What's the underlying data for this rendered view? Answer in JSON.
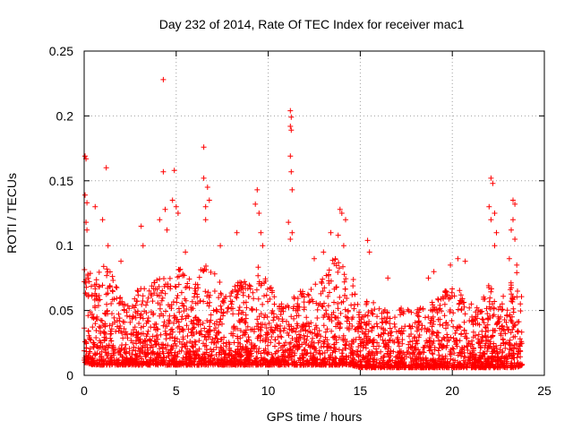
{
  "chart_data": {
    "type": "scatter",
    "title": "Day 232 of 2014, Rate Of TEC Index for receiver mac1",
    "xlabel": "GPS time / hours",
    "ylabel": "ROTI / TECUs",
    "xlim": [
      0,
      25
    ],
    "ylim": [
      0,
      0.25
    ],
    "xticks": [
      0,
      5,
      10,
      15,
      20,
      25
    ],
    "xtick_labels": [
      "0",
      "5",
      "10",
      "15",
      "20",
      "25"
    ],
    "yticks": [
      0,
      0.05,
      0.1,
      0.15,
      0.2,
      0.25
    ],
    "ytick_labels": [
      "0",
      "0.05",
      "0.1",
      "0.15",
      "0.2",
      "0.25"
    ],
    "grid": true,
    "marker": "+",
    "color": "#ff0000",
    "data_range_x": [
      0.0,
      23.8
    ],
    "outlier_points": [
      {
        "x": 0.05,
        "y": 0.169
      },
      {
        "x": 0.1,
        "y": 0.167
      },
      {
        "x": 0.05,
        "y": 0.139
      },
      {
        "x": 0.15,
        "y": 0.133
      },
      {
        "x": 0.1,
        "y": 0.118
      },
      {
        "x": 0.15,
        "y": 0.112
      },
      {
        "x": 0.6,
        "y": 0.13
      },
      {
        "x": 1.2,
        "y": 0.16
      },
      {
        "x": 1.0,
        "y": 0.12
      },
      {
        "x": 1.3,
        "y": 0.1
      },
      {
        "x": 2.0,
        "y": 0.088
      },
      {
        "x": 3.1,
        "y": 0.115
      },
      {
        "x": 3.2,
        "y": 0.1
      },
      {
        "x": 4.3,
        "y": 0.228
      },
      {
        "x": 4.3,
        "y": 0.157
      },
      {
        "x": 4.1,
        "y": 0.12
      },
      {
        "x": 4.4,
        "y": 0.128
      },
      {
        "x": 4.5,
        "y": 0.112
      },
      {
        "x": 4.9,
        "y": 0.158
      },
      {
        "x": 4.8,
        "y": 0.135
      },
      {
        "x": 5.0,
        "y": 0.13
      },
      {
        "x": 5.1,
        "y": 0.125
      },
      {
        "x": 5.5,
        "y": 0.095
      },
      {
        "x": 6.5,
        "y": 0.176
      },
      {
        "x": 6.5,
        "y": 0.152
      },
      {
        "x": 6.7,
        "y": 0.145
      },
      {
        "x": 6.6,
        "y": 0.13
      },
      {
        "x": 6.8,
        "y": 0.135
      },
      {
        "x": 6.6,
        "y": 0.12
      },
      {
        "x": 7.4,
        "y": 0.1
      },
      {
        "x": 8.3,
        "y": 0.11
      },
      {
        "x": 9.4,
        "y": 0.143
      },
      {
        "x": 9.3,
        "y": 0.132
      },
      {
        "x": 9.5,
        "y": 0.125
      },
      {
        "x": 9.6,
        "y": 0.11
      },
      {
        "x": 9.7,
        "y": 0.1
      },
      {
        "x": 11.2,
        "y": 0.204
      },
      {
        "x": 11.25,
        "y": 0.199
      },
      {
        "x": 11.2,
        "y": 0.192
      },
      {
        "x": 11.25,
        "y": 0.189
      },
      {
        "x": 11.2,
        "y": 0.169
      },
      {
        "x": 11.25,
        "y": 0.157
      },
      {
        "x": 11.3,
        "y": 0.143
      },
      {
        "x": 11.1,
        "y": 0.118
      },
      {
        "x": 11.3,
        "y": 0.11
      },
      {
        "x": 11.2,
        "y": 0.105
      },
      {
        "x": 12.5,
        "y": 0.09
      },
      {
        "x": 13.0,
        "y": 0.095
      },
      {
        "x": 13.4,
        "y": 0.11
      },
      {
        "x": 13.9,
        "y": 0.128
      },
      {
        "x": 14.0,
        "y": 0.125
      },
      {
        "x": 14.2,
        "y": 0.12
      },
      {
        "x": 13.8,
        "y": 0.108
      },
      {
        "x": 14.1,
        "y": 0.1
      },
      {
        "x": 15.4,
        "y": 0.104
      },
      {
        "x": 15.5,
        "y": 0.095
      },
      {
        "x": 16.5,
        "y": 0.075
      },
      {
        "x": 18.7,
        "y": 0.075
      },
      {
        "x": 19.0,
        "y": 0.08
      },
      {
        "x": 19.9,
        "y": 0.085
      },
      {
        "x": 20.3,
        "y": 0.09
      },
      {
        "x": 20.7,
        "y": 0.088
      },
      {
        "x": 22.1,
        "y": 0.152
      },
      {
        "x": 22.2,
        "y": 0.148
      },
      {
        "x": 22.0,
        "y": 0.13
      },
      {
        "x": 22.3,
        "y": 0.125
      },
      {
        "x": 22.1,
        "y": 0.12
      },
      {
        "x": 22.3,
        "y": 0.1
      },
      {
        "x": 22.4,
        "y": 0.11
      },
      {
        "x": 23.3,
        "y": 0.135
      },
      {
        "x": 23.4,
        "y": 0.132
      },
      {
        "x": 23.3,
        "y": 0.12
      },
      {
        "x": 23.2,
        "y": 0.112
      },
      {
        "x": 23.4,
        "y": 0.105
      },
      {
        "x": 23.1,
        "y": 0.09
      },
      {
        "x": 23.5,
        "y": 0.085
      }
    ],
    "envelope": {
      "x": [
        0,
        0.5,
        1,
        1.5,
        2,
        2.5,
        3,
        3.5,
        4,
        4.5,
        5,
        5.5,
        6,
        6.5,
        7,
        7.5,
        8,
        8.5,
        9,
        9.5,
        10,
        10.5,
        11,
        11.5,
        12,
        12.5,
        13,
        13.5,
        14,
        14.5,
        15,
        15.5,
        16,
        16.5,
        17,
        17.5,
        18,
        18.5,
        19,
        19.5,
        20,
        20.5,
        21,
        21.5,
        22,
        22.5,
        23,
        23.5,
        23.8
      ],
      "upper": [
        0.1,
        0.07,
        0.085,
        0.08,
        0.065,
        0.06,
        0.07,
        0.065,
        0.08,
        0.075,
        0.085,
        0.08,
        0.07,
        0.09,
        0.08,
        0.07,
        0.065,
        0.075,
        0.07,
        0.085,
        0.075,
        0.06,
        0.06,
        0.065,
        0.065,
        0.07,
        0.075,
        0.09,
        0.095,
        0.08,
        0.06,
        0.065,
        0.055,
        0.05,
        0.05,
        0.055,
        0.05,
        0.055,
        0.06,
        0.065,
        0.07,
        0.065,
        0.06,
        0.055,
        0.07,
        0.06,
        0.07,
        0.08,
        0.06
      ],
      "lower": [
        0.01,
        0.008,
        0.008,
        0.008,
        0.008,
        0.008,
        0.008,
        0.008,
        0.008,
        0.008,
        0.008,
        0.008,
        0.008,
        0.008,
        0.008,
        0.008,
        0.008,
        0.008,
        0.008,
        0.008,
        0.008,
        0.008,
        0.008,
        0.008,
        0.008,
        0.008,
        0.008,
        0.008,
        0.008,
        0.008,
        0.006,
        0.006,
        0.006,
        0.006,
        0.006,
        0.006,
        0.006,
        0.006,
        0.006,
        0.006,
        0.006,
        0.006,
        0.006,
        0.006,
        0.006,
        0.006,
        0.006,
        0.006,
        0.008
      ]
    }
  }
}
